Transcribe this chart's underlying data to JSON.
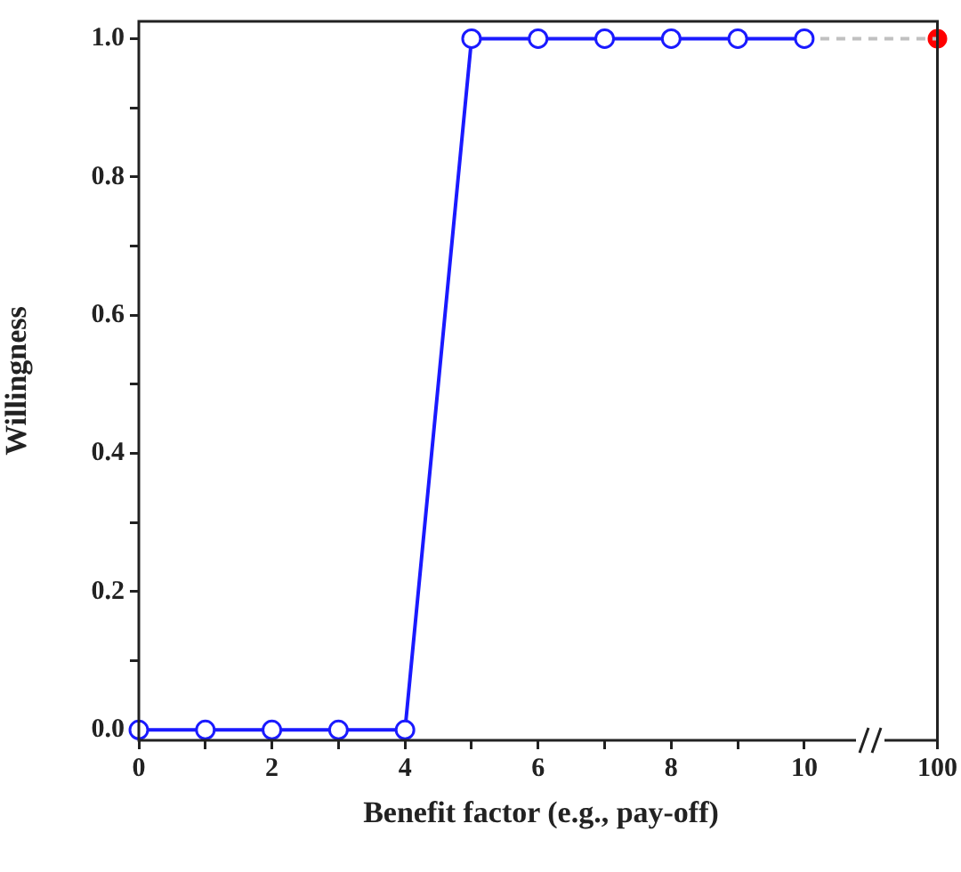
{
  "chart_data": {
    "type": "line",
    "xlabel": "Benefit factor (e.g., pay-off)",
    "ylabel": "Willingness",
    "categories": [
      "0",
      null,
      "2",
      null,
      "4",
      null,
      "6",
      null,
      "8",
      null,
      "10",
      null,
      "100"
    ],
    "ylim": [
      -0.015,
      1.025
    ],
    "yticks": [
      {
        "value": 0,
        "label": "0.0"
      },
      {
        "value": 0.1,
        "label": null
      },
      0.2,
      {
        "value": 0.3,
        "label": null
      },
      0.4,
      {
        "value": 0.5,
        "label": null
      },
      0.6,
      {
        "value": 0.7,
        "label": null
      },
      0.8,
      {
        "value": 0.9,
        "label": null
      },
      {
        "value": 1,
        "label": "1.0"
      }
    ],
    "grid": false,
    "legend": false,
    "marker": "circle",
    "series": [
      {
        "color": "#1a1aff",
        "values": [
          0,
          0,
          0,
          0,
          0,
          1,
          1,
          1,
          1,
          1,
          1,
          null,
          null
        ]
      },
      {
        "x": [
          "10",
          "100"
        ],
        "color": "#c0c0c0",
        "values": [
          1,
          1
        ],
        "marker": "none",
        "line_style": "dashed"
      },
      {
        "type": "scatter",
        "x": [
          "100"
        ],
        "color": "#ff0000",
        "values": [
          1
        ]
      }
    ]
  }
}
